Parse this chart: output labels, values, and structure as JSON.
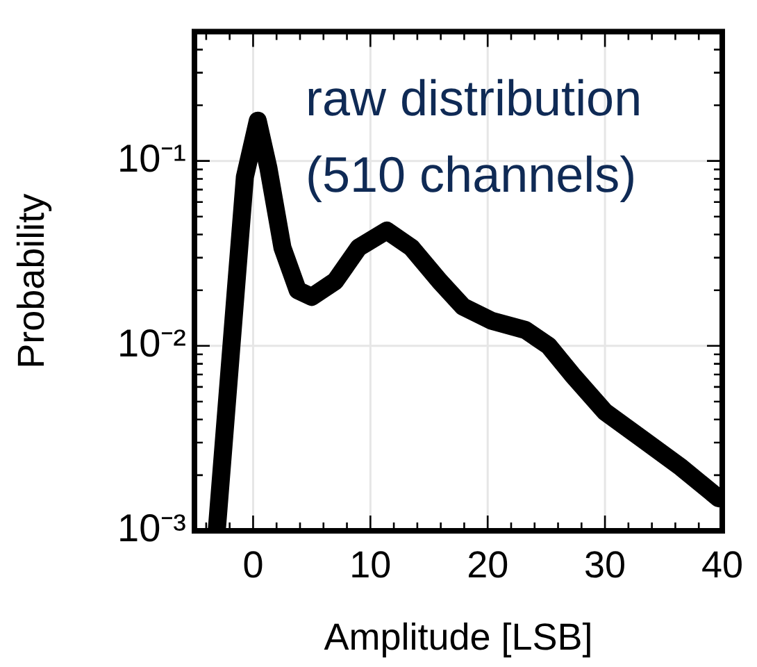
{
  "chart_data": {
    "type": "line",
    "xlabel": "Amplitude [LSB]",
    "ylabel": "Probability",
    "log": "y",
    "grid": true,
    "marker": "none",
    "line_style": "solid",
    "legend": false,
    "annotations": [
      "raw distribution",
      "(510 channels)"
    ],
    "xlim": [
      -5,
      40
    ],
    "ylim": [
      0.001,
      0.5
    ],
    "xticks": [
      {
        "value": -4,
        "label": null
      },
      {
        "value": -2,
        "label": null
      },
      0,
      {
        "value": 2,
        "label": null
      },
      {
        "value": 4,
        "label": null
      },
      {
        "value": 6,
        "label": null
      },
      {
        "value": 8,
        "label": null
      },
      10,
      {
        "value": 12,
        "label": null
      },
      {
        "value": 14,
        "label": null
      },
      {
        "value": 16,
        "label": null
      },
      {
        "value": 18,
        "label": null
      },
      20,
      {
        "value": 22,
        "label": null
      },
      {
        "value": 24,
        "label": null
      },
      {
        "value": 26,
        "label": null
      },
      {
        "value": 28,
        "label": null
      },
      30,
      {
        "value": 32,
        "label": null
      },
      {
        "value": 34,
        "label": null
      },
      {
        "value": 36,
        "label": null
      },
      {
        "value": 38,
        "label": null
      },
      40
    ],
    "yticks": [
      {
        "value": 0.001,
        "label": "10⁻³"
      },
      {
        "value": 0.002,
        "label": null
      },
      {
        "value": 0.003,
        "label": null
      },
      {
        "value": 0.004,
        "label": null
      },
      {
        "value": 0.005,
        "label": null
      },
      {
        "value": 0.006,
        "label": null
      },
      {
        "value": 0.007,
        "label": null
      },
      {
        "value": 0.008,
        "label": null
      },
      {
        "value": 0.009,
        "label": null
      },
      {
        "value": 0.01,
        "label": "10⁻²"
      },
      {
        "value": 0.02,
        "label": null
      },
      {
        "value": 0.03,
        "label": null
      },
      {
        "value": 0.04,
        "label": null
      },
      {
        "value": 0.05,
        "label": null
      },
      {
        "value": 0.06,
        "label": null
      },
      {
        "value": 0.07,
        "label": null
      },
      {
        "value": 0.08,
        "label": null
      },
      {
        "value": 0.09,
        "label": null
      },
      {
        "value": 0.1,
        "label": "10⁻¹"
      },
      {
        "value": 0.2,
        "label": null
      },
      {
        "value": 0.3,
        "label": null
      },
      {
        "value": 0.4,
        "label": null
      },
      {
        "value": 0.5,
        "label": null
      }
    ],
    "series": [
      {
        "color": "#000000",
        "x": [
          -3.1,
          -1.5,
          -0.7,
          0.4,
          1.3,
          2.5,
          3.8,
          5.0,
          7.0,
          9.0,
          11.4,
          13.5,
          15.9,
          17.9,
          20.3,
          23.2,
          25.2,
          27.2,
          30.0,
          33.3,
          36.5,
          39.7
        ],
        "values": [
          0.001,
          0.019,
          0.082,
          0.165,
          0.092,
          0.034,
          0.02,
          0.0184,
          0.0224,
          0.034,
          0.042,
          0.034,
          0.0224,
          0.0163,
          0.0137,
          0.0122,
          0.01,
          0.007,
          0.0044,
          0.0031,
          0.0022,
          0.0015
        ]
      }
    ]
  }
}
